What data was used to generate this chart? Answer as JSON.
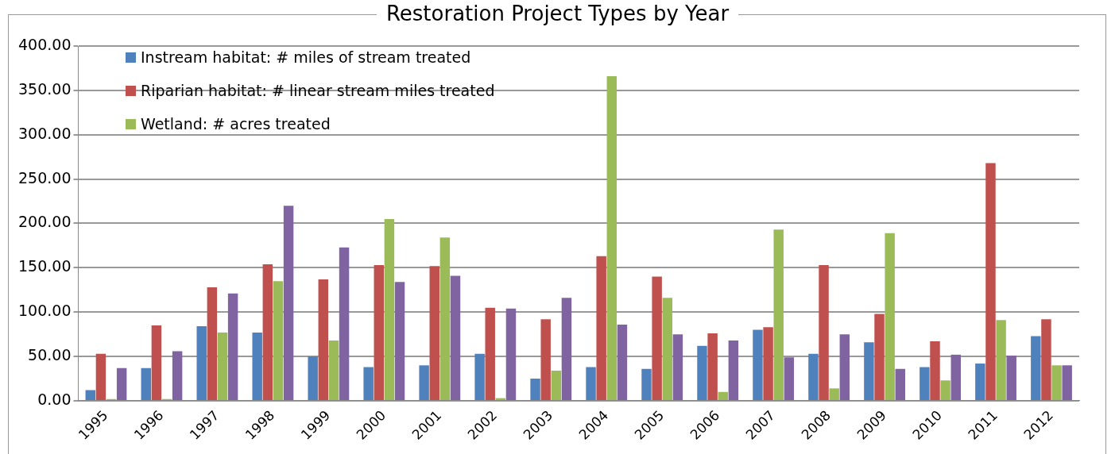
{
  "chart_data": {
    "type": "bar",
    "title": "Restoration Project Types by Year",
    "categories": [
      "1995",
      "1996",
      "1997",
      "1998",
      "1999",
      "2000",
      "2001",
      "2002",
      "2003",
      "2004",
      "2005",
      "2006",
      "2007",
      "2008",
      "2009",
      "2010",
      "2011",
      "2012"
    ],
    "series": [
      {
        "name": "Instream habitat: # miles of stream treated",
        "color": "#4f81bd",
        "values": [
          12,
          37,
          84,
          77,
          50,
          38,
          40,
          53,
          25,
          38,
          36,
          62,
          80,
          53,
          66,
          38,
          42,
          73
        ]
      },
      {
        "name": "Riparian habitat: # linear stream miles treated",
        "color": "#c0504d",
        "values": [
          53,
          85,
          128,
          154,
          137,
          153,
          152,
          105,
          92,
          163,
          140,
          76,
          83,
          153,
          98,
          67,
          268,
          92
        ]
      },
      {
        "name": "Wetland: # acres treated",
        "color": "#9bbb59",
        "values": [
          2,
          2,
          77,
          135,
          68,
          205,
          184,
          3,
          34,
          366,
          116,
          10,
          193,
          14,
          189,
          23,
          91,
          40
        ]
      },
      {
        "color": "#8064a2",
        "values": [
          37,
          56,
          121,
          220,
          173,
          134,
          141,
          104,
          116,
          86,
          75,
          68,
          49,
          75,
          36,
          52,
          51,
          40
        ]
      }
    ],
    "ylim": [
      0,
      400
    ],
    "yticks": [
      {
        "value": 0,
        "label": "0.00"
      },
      {
        "value": 50,
        "label": "50.00"
      },
      {
        "value": 100,
        "label": "100.00"
      },
      {
        "value": 150,
        "label": "150.00"
      },
      {
        "value": 200,
        "label": "200.00"
      },
      {
        "value": 250,
        "label": "250.00"
      },
      {
        "value": 300,
        "label": "300.00"
      },
      {
        "value": 350,
        "label": "350.00"
      },
      {
        "value": 400,
        "label": "400.00"
      }
    ],
    "grid": "y",
    "legend": "top left"
  }
}
